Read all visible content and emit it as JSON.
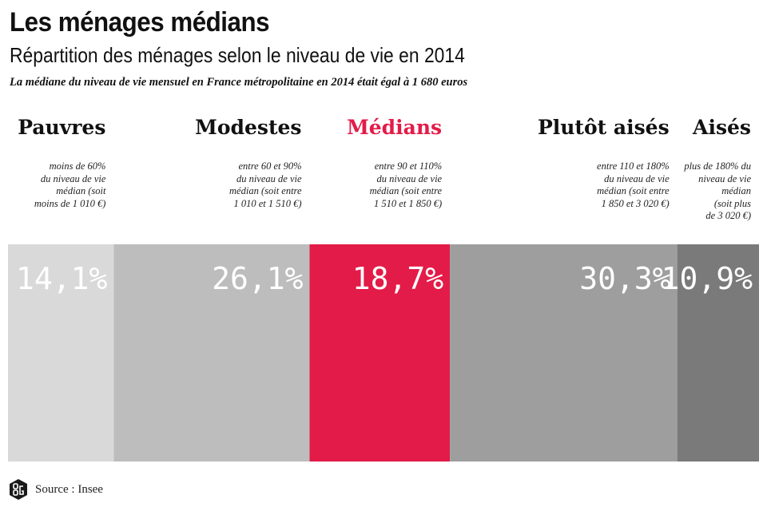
{
  "title": "Les ménages médians",
  "subtitle": "Répartition des ménages selon le niveau de vie en 2014",
  "note": "La médiane du niveau de vie mensuel en France métropolitaine en 2014 était égal à 1 680 euros",
  "source": "Source : Insee",
  "logo_icon": "big-logo-icon",
  "colors": {
    "pauvres": "#d9d9d9",
    "modestes": "#bdbdbd",
    "medians": "#e31b48",
    "plutot_aises": "#9e9e9e",
    "aises": "#7a7a7a",
    "highlight_text": "#e31b48"
  },
  "categories": [
    {
      "name": "Pauvres",
      "description": "moins de 60%\ndu niveau de vie\nmédian (soit\nmoins de 1 010 €)",
      "value_label": "14,1%"
    },
    {
      "name": "Modestes",
      "description": "entre 60 et 90%\ndu niveau de vie\nmédian (soit entre\n1 010 et 1 510 €)",
      "value_label": "26,1%"
    },
    {
      "name": "Médians",
      "description": "entre 90 et 110%\ndu niveau de vie\nmédian (soit entre\n1 510 et 1 850 €)",
      "value_label": "18,7%"
    },
    {
      "name": "Plutôt aisés",
      "description": "entre 110 et 180%\ndu niveau de vie\nmédian (soit entre\n1 850 et 3 020 €)",
      "value_label": "30,3%"
    },
    {
      "name": "Aisés",
      "description": "plus de 180% du\nniveau de vie\nmédian\n(soit plus\nde 3 020 €)",
      "value_label": "10,9%"
    }
  ],
  "chart_data": {
    "type": "bar",
    "orientation": "stacked-horizontal-100",
    "categories": [
      "Pauvres",
      "Modestes",
      "Médians",
      "Plutôt aisés",
      "Aisés"
    ],
    "values": [
      14.1,
      26.1,
      18.7,
      30.3,
      10.9
    ],
    "value_labels": [
      "14,1%",
      "26,1%",
      "18,7%",
      "30,3%",
      "10,9%"
    ],
    "colors": [
      "#d9d9d9",
      "#bdbdbd",
      "#e31b48",
      "#9e9e9e",
      "#7a7a7a"
    ],
    "highlight": "Médians",
    "unit": "%",
    "title": "Les ménages médians",
    "subtitle": "Répartition des ménages selon le niveau de vie en 2014",
    "xlabel": "",
    "ylabel": "",
    "grid": false,
    "legend": "none"
  }
}
